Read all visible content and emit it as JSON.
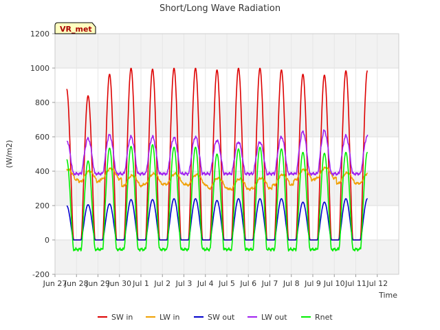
{
  "chart_data": {
    "type": "line",
    "title": "Short/Long Wave Radiation",
    "xlabel": "Time",
    "ylabel": "(W/m2)",
    "site_label": "VR_met",
    "xlim": [
      0,
      16
    ],
    "ylim": [
      -200,
      1200
    ],
    "y_ticks": [
      -200,
      0,
      200,
      400,
      600,
      800,
      1000,
      1200
    ],
    "x_ticks": [
      {
        "pos": 0,
        "label": "Jun 27"
      },
      {
        "pos": 1,
        "label": "Jun 28"
      },
      {
        "pos": 2,
        "label": "Jun 29"
      },
      {
        "pos": 3,
        "label": "Jun 30"
      },
      {
        "pos": 4,
        "label": "Jul 1"
      },
      {
        "pos": 5,
        "label": "Jul 2"
      },
      {
        "pos": 6,
        "label": "Jul 3"
      },
      {
        "pos": 7,
        "label": "Jul 4"
      },
      {
        "pos": 8,
        "label": "Jul 5"
      },
      {
        "pos": 9,
        "label": "Jul 6"
      },
      {
        "pos": 10,
        "label": "Jul 7"
      },
      {
        "pos": 11,
        "label": "Jul 8"
      },
      {
        "pos": 12,
        "label": "Jul 9"
      },
      {
        "pos": 13,
        "label": "Jul 10"
      },
      {
        "pos": 14,
        "label": "Jul 11"
      },
      {
        "pos": 15,
        "label": "Jul 12"
      }
    ],
    "grid": true,
    "background_bands": true,
    "legend_position": "bottom-center",
    "series": [
      {
        "name": "SW in",
        "color": "#dd0000",
        "daily_peak": [
          880,
          840,
          965,
          1000,
          995,
          1000,
          1000,
          990,
          1000,
          1000,
          990,
          965,
          960,
          985
        ]
      },
      {
        "name": "LW in",
        "color": "#f0a000",
        "daily_peak": [
          420,
          410,
          425,
          385,
          395,
          395,
          390,
          370,
          365,
          370,
          390,
          420,
          430,
          400
        ]
      },
      {
        "name": "SW out",
        "color": "#0000cc",
        "daily_peak": [
          200,
          205,
          210,
          235,
          235,
          240,
          240,
          230,
          240,
          240,
          240,
          220,
          220,
          240
        ]
      },
      {
        "name": "LW out",
        "color": "#a020f0",
        "daily_peak": [
          580,
          590,
          610,
          600,
          600,
          595,
          600,
          580,
          570,
          570,
          600,
          630,
          635,
          605
        ]
      },
      {
        "name": "Rnet",
        "color": "#00ee00",
        "daily_peak": [
          470,
          460,
          535,
          545,
          555,
          540,
          540,
          500,
          530,
          540,
          530,
          510,
          505,
          510
        ]
      }
    ]
  }
}
